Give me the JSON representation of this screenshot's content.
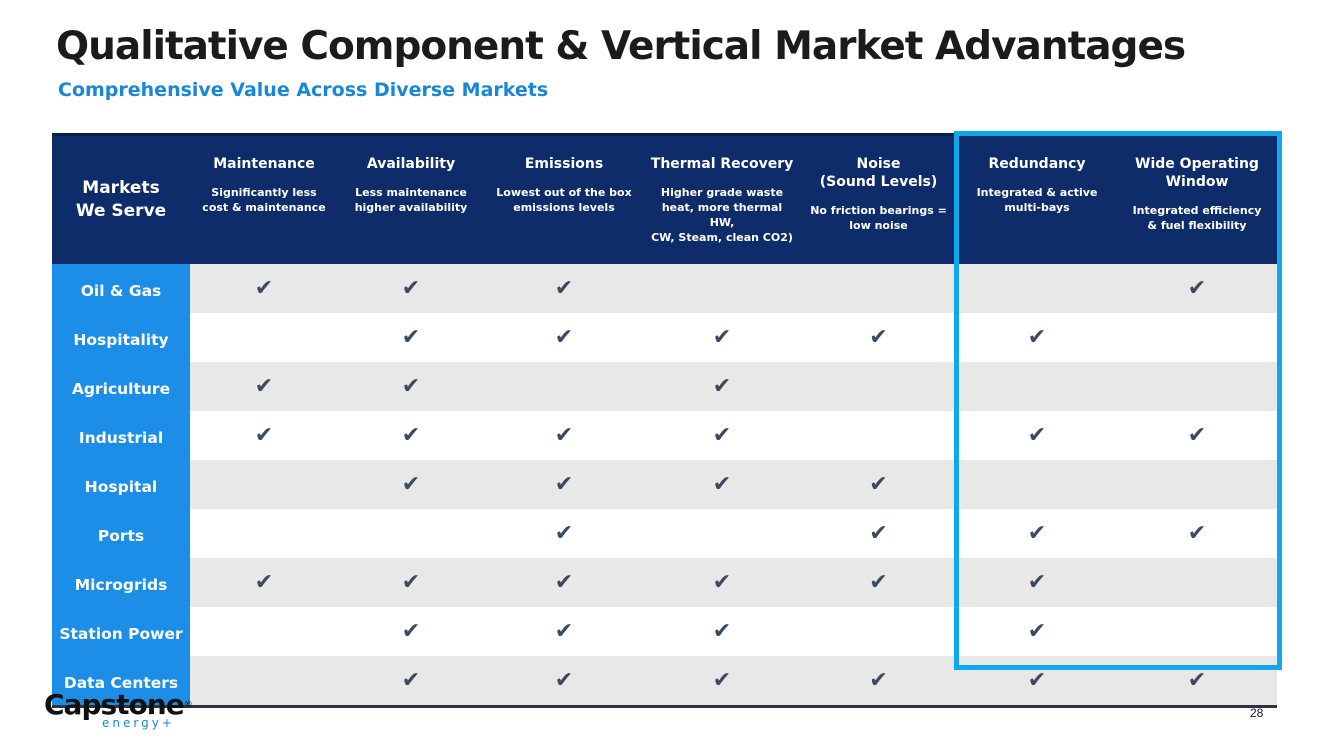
{
  "title": "Qualitative Component & Vertical Market Advantages",
  "subtitle": "Comprehensive Value Across Diverse Markets",
  "table": {
    "corner_label": "Markets\nWe Serve",
    "columns": [
      {
        "title": "Maintenance",
        "subtitle": "Significantly less\ncost & maintenance"
      },
      {
        "title": "Availability",
        "subtitle": "Less maintenance\nhigher availability"
      },
      {
        "title": "Emissions",
        "subtitle": "Lowest out of the box\nemissions levels"
      },
      {
        "title": "Thermal Recovery",
        "subtitle": "Higher grade waste\nheat,  more thermal HW,\nCW, Steam, clean CO2)"
      },
      {
        "title": "Noise\n(Sound Levels)",
        "subtitle": "No friction bearings =\nlow noise"
      },
      {
        "title": "Redundancy",
        "subtitle": "Integrated & active\nmulti-bays"
      },
      {
        "title": "Wide Operating\nWindow",
        "subtitle": "Integrated efficiency\n& fuel flexibility"
      }
    ],
    "check_symbol": "✔",
    "rows": [
      {
        "market": "Oil & Gas",
        "checks": [
          true,
          true,
          true,
          false,
          false,
          false,
          true
        ]
      },
      {
        "market": "Hospitality",
        "checks": [
          false,
          true,
          true,
          true,
          true,
          true,
          false
        ]
      },
      {
        "market": "Agriculture",
        "checks": [
          true,
          true,
          false,
          true,
          false,
          false,
          false
        ]
      },
      {
        "market": "Industrial",
        "checks": [
          true,
          true,
          true,
          true,
          false,
          true,
          true
        ]
      },
      {
        "market": "Hospital",
        "checks": [
          false,
          true,
          true,
          true,
          true,
          false,
          false
        ]
      },
      {
        "market": "Ports",
        "checks": [
          false,
          false,
          true,
          false,
          true,
          true,
          true
        ]
      },
      {
        "market": "Microgrids",
        "checks": [
          true,
          true,
          true,
          true,
          true,
          true,
          false
        ]
      },
      {
        "market": "Station Power",
        "checks": [
          false,
          true,
          true,
          true,
          false,
          true,
          false
        ]
      },
      {
        "market": "Data Centers",
        "checks": [
          false,
          true,
          true,
          true,
          true,
          true,
          true
        ]
      }
    ]
  },
  "logo": {
    "main": "Capstone",
    "reg": "®",
    "sub": "energy+"
  },
  "page_number": "28",
  "colors": {
    "header_bg": "#0f2c6a",
    "market_bg": "#1d8ee8",
    "subtitle": "#1a86d6",
    "highlight_border": "#0fa8ec",
    "row_shade": "#e8e8e8"
  }
}
